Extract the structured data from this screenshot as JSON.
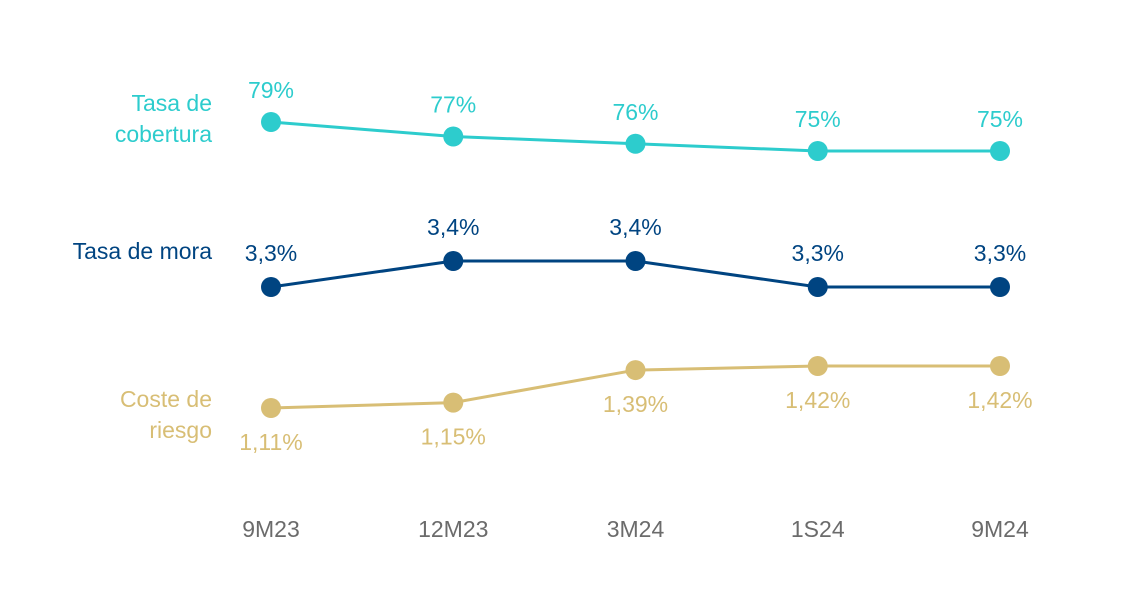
{
  "chart_data": {
    "type": "line",
    "categories": [
      "9M23",
      "12M23",
      "3M24",
      "1S24",
      "9M24"
    ],
    "series": [
      {
        "name": "Tasa de cobertura",
        "color": "#2dcccd",
        "values": [
          79,
          77,
          76,
          75,
          75
        ],
        "value_labels": [
          "79%",
          "77%",
          "76%",
          "75%",
          "75%"
        ]
      },
      {
        "name": "Tasa de mora",
        "color": "#004481",
        "values": [
          3.3,
          3.4,
          3.4,
          3.3,
          3.3
        ],
        "value_labels": [
          "3,3%",
          "3,4%",
          "3,4%",
          "3,3%",
          "3,3%"
        ]
      },
      {
        "name": "Coste de riesgo",
        "color": "#d8be75",
        "values": [
          1.11,
          1.15,
          1.39,
          1.42,
          1.42
        ],
        "value_labels": [
          "1,11%",
          "1,15%",
          "1,39%",
          "1,42%",
          "1,42%"
        ]
      }
    ]
  }
}
